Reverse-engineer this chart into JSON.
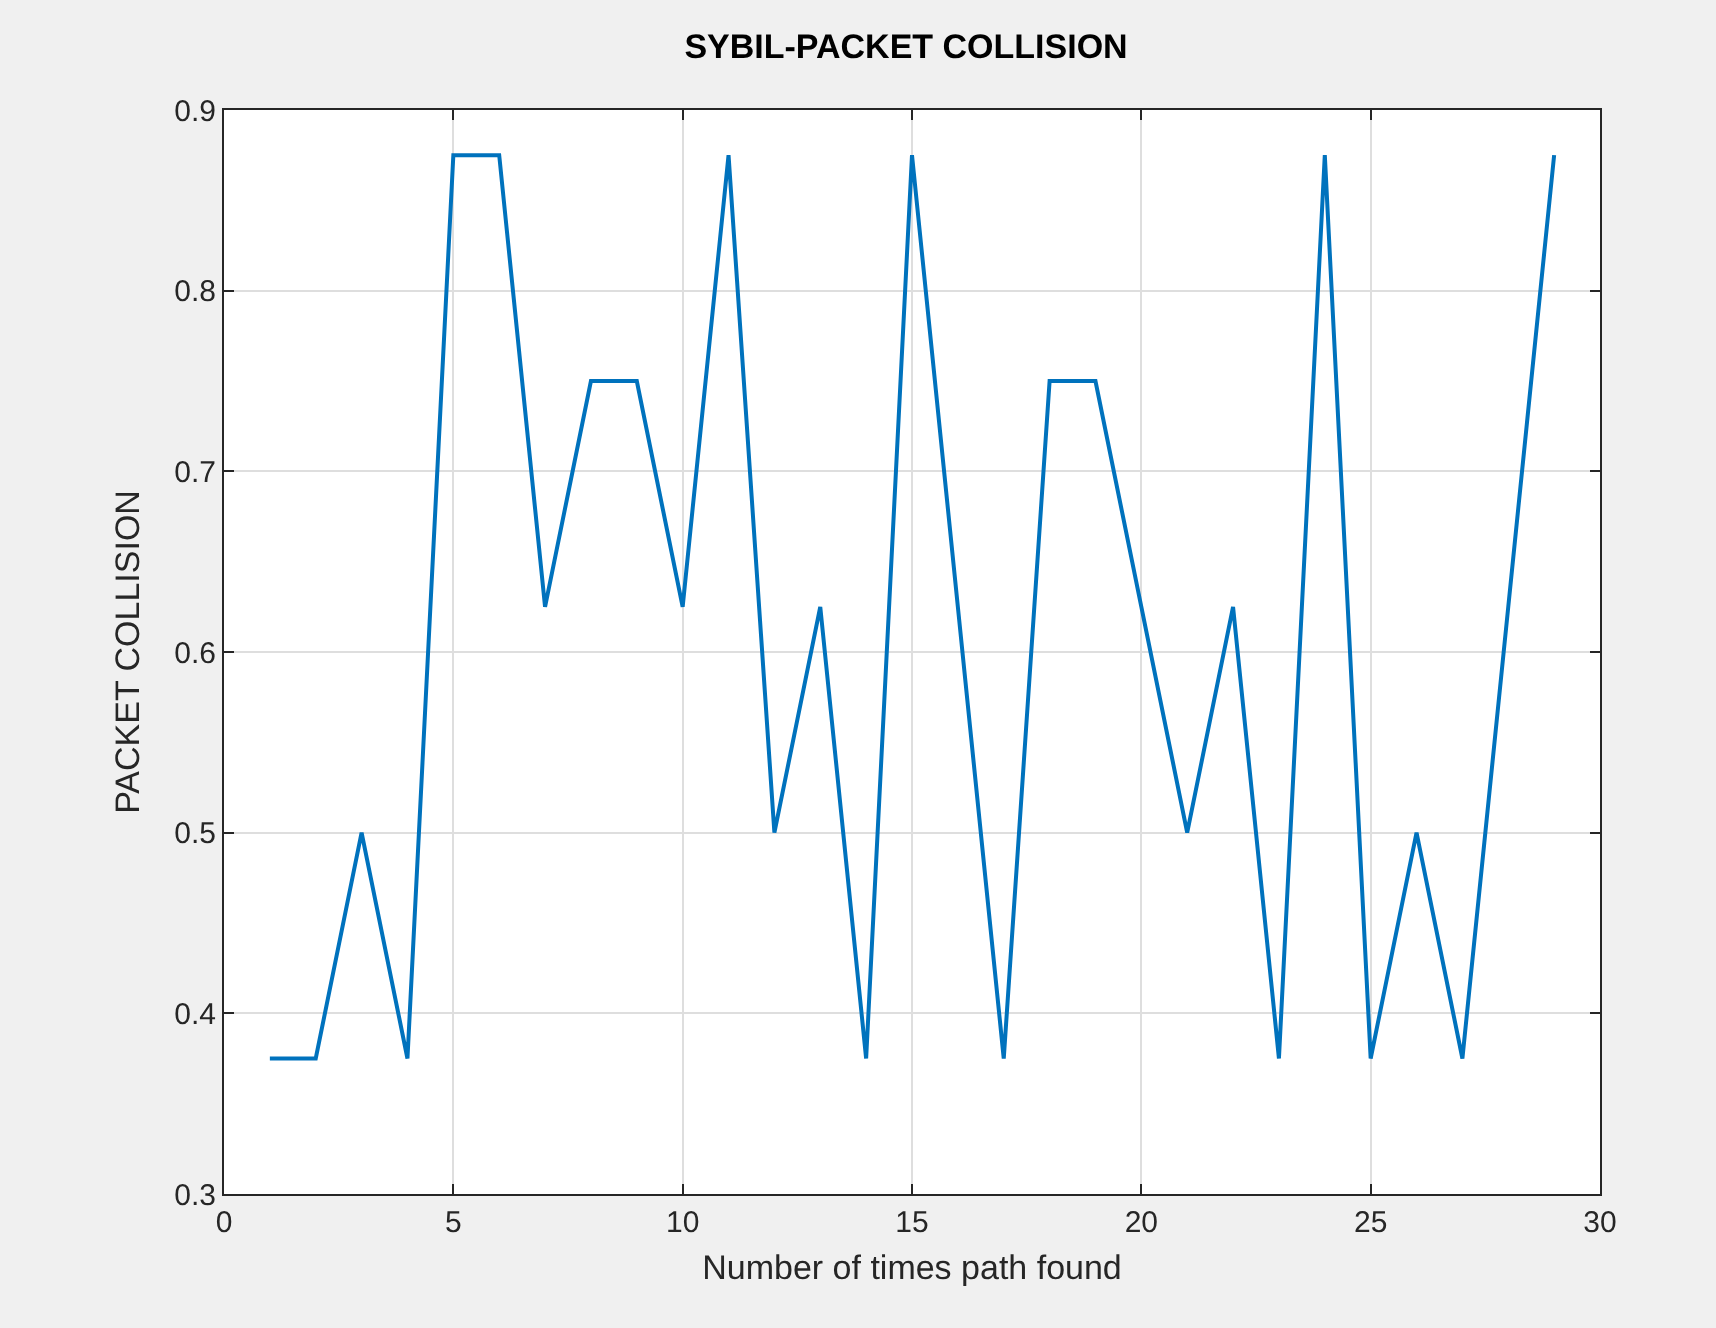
{
  "chart_data": {
    "type": "line",
    "title": "SYBIL-PACKET COLLISION",
    "xlabel": "Number of times path found",
    "ylabel": "PACKET COLLISION",
    "x": [
      1,
      2,
      3,
      4,
      5,
      6,
      7,
      8,
      9,
      10,
      11,
      12,
      13,
      14,
      15,
      16,
      17,
      18,
      19,
      20,
      21,
      22,
      23,
      24,
      25,
      26,
      27,
      28,
      29
    ],
    "series": [
      {
        "color": "#0072bd",
        "values": [
          0.375,
          0.375,
          0.5,
          0.375,
          0.875,
          0.875,
          0.625,
          0.75,
          0.75,
          0.625,
          0.875,
          0.5,
          0.625,
          0.375,
          0.875,
          0.625,
          0.375,
          0.75,
          0.75,
          0.625,
          0.5,
          0.625,
          0.375,
          0.875,
          0.375,
          0.5,
          0.375,
          0.625,
          0.875
        ]
      }
    ],
    "xlim": [
      0,
      30
    ],
    "xticks": [
      0,
      5,
      10,
      15,
      20,
      25,
      30
    ],
    "ylim": [
      0.3,
      0.9
    ],
    "yticks": [
      0.3,
      0.4,
      0.5,
      0.6,
      0.7,
      0.8,
      0.9
    ],
    "grid": true,
    "marker": "none",
    "line_style": "solid"
  }
}
